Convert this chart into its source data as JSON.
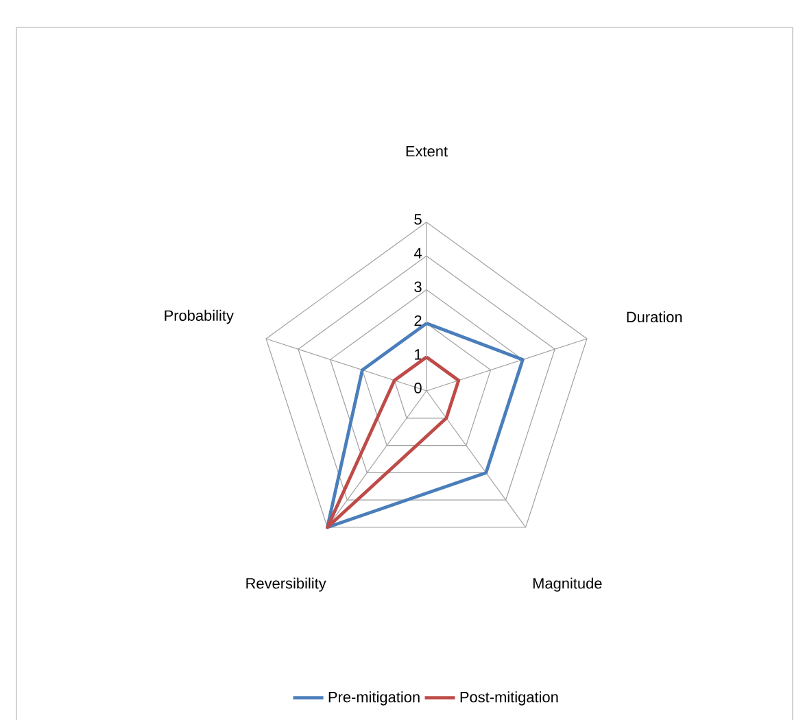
{
  "chart_data": {
    "type": "radar",
    "categories": [
      "Extent",
      "Duration",
      "Magnitude",
      "Reversibility",
      "Probability"
    ],
    "ylim": [
      0,
      5
    ],
    "yticks": [
      0,
      1,
      2,
      3,
      4,
      5
    ],
    "grid": true,
    "legend": "bottom",
    "series": [
      {
        "name": "Pre-mitigation",
        "color": "#4a7ebb",
        "values": [
          2,
          3,
          3,
          5,
          2
        ]
      },
      {
        "name": "Post-mitigation",
        "color": "#be4b48",
        "values": [
          1,
          1,
          1,
          5,
          1
        ]
      }
    ]
  }
}
